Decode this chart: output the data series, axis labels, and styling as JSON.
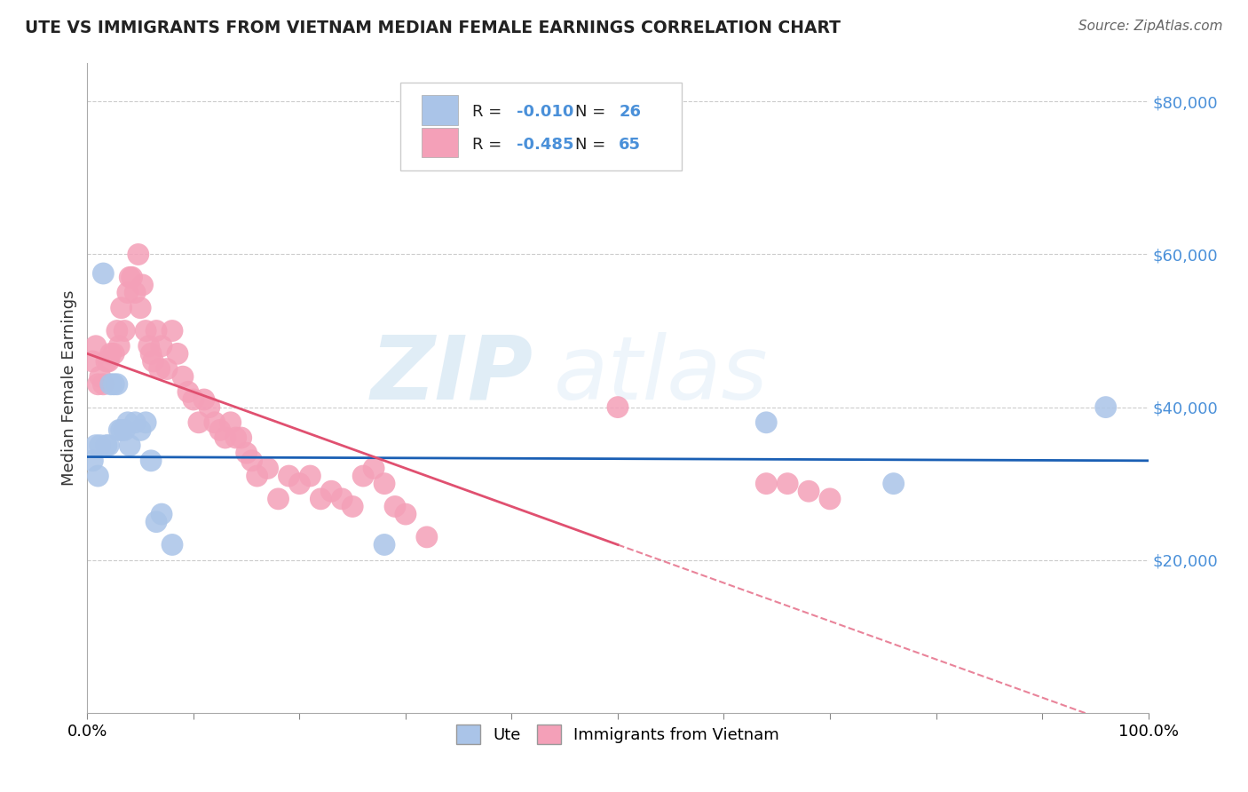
{
  "title": "UTE VS IMMIGRANTS FROM VIETNAM MEDIAN FEMALE EARNINGS CORRELATION CHART",
  "source": "Source: ZipAtlas.com",
  "ylabel": "Median Female Earnings",
  "yticks": [
    20000,
    40000,
    60000,
    80000
  ],
  "ytick_labels": [
    "$20,000",
    "$40,000",
    "$60,000",
    "$80,000"
  ],
  "xlim": [
    0,
    1
  ],
  "ylim": [
    0,
    85000
  ],
  "legend_r": [
    -0.01,
    -0.485
  ],
  "legend_n": [
    26,
    65
  ],
  "ute_color": "#aac4e8",
  "vietnam_color": "#f4a0b8",
  "ute_line_color": "#1a5fb4",
  "vietnam_line_color": "#e05070",
  "tick_color": "#4a90d9",
  "background_color": "#ffffff",
  "watermark_zip": "ZIP",
  "watermark_atlas": "atlas",
  "ute_x": [
    0.005,
    0.008,
    0.01,
    0.012,
    0.015,
    0.018,
    0.02,
    0.022,
    0.025,
    0.028,
    0.03,
    0.032,
    0.035,
    0.038,
    0.04,
    0.045,
    0.05,
    0.055,
    0.06,
    0.065,
    0.07,
    0.08,
    0.28,
    0.64,
    0.76,
    0.96
  ],
  "ute_y": [
    33000,
    35000,
    31000,
    35000,
    57500,
    35000,
    35000,
    43000,
    43000,
    43000,
    37000,
    37000,
    37000,
    38000,
    35000,
    38000,
    37000,
    38000,
    33000,
    25000,
    26000,
    22000,
    22000,
    38000,
    30000,
    40000
  ],
  "vietnam_x": [
    0.005,
    0.008,
    0.01,
    0.012,
    0.015,
    0.018,
    0.02,
    0.022,
    0.025,
    0.028,
    0.03,
    0.032,
    0.035,
    0.038,
    0.04,
    0.042,
    0.045,
    0.048,
    0.05,
    0.052,
    0.055,
    0.058,
    0.06,
    0.062,
    0.065,
    0.068,
    0.07,
    0.075,
    0.08,
    0.085,
    0.09,
    0.095,
    0.1,
    0.105,
    0.11,
    0.115,
    0.12,
    0.125,
    0.13,
    0.135,
    0.14,
    0.145,
    0.15,
    0.155,
    0.16,
    0.17,
    0.18,
    0.19,
    0.2,
    0.21,
    0.22,
    0.23,
    0.24,
    0.25,
    0.26,
    0.27,
    0.28,
    0.29,
    0.3,
    0.32,
    0.64,
    0.66,
    0.68,
    0.7,
    0.5
  ],
  "vietnam_y": [
    46000,
    48000,
    43000,
    44000,
    43000,
    46000,
    46000,
    47000,
    47000,
    50000,
    48000,
    53000,
    50000,
    55000,
    57000,
    57000,
    55000,
    60000,
    53000,
    56000,
    50000,
    48000,
    47000,
    46000,
    50000,
    45000,
    48000,
    45000,
    50000,
    47000,
    44000,
    42000,
    41000,
    38000,
    41000,
    40000,
    38000,
    37000,
    36000,
    38000,
    36000,
    36000,
    34000,
    33000,
    31000,
    32000,
    28000,
    31000,
    30000,
    31000,
    28000,
    29000,
    28000,
    27000,
    31000,
    32000,
    30000,
    27000,
    26000,
    23000,
    30000,
    30000,
    29000,
    28000,
    40000
  ]
}
